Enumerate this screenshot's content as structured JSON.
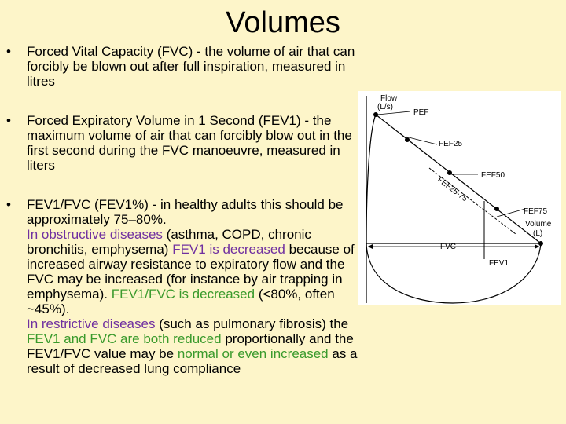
{
  "slide": {
    "title": "Volumes",
    "bullet_marker": "•",
    "bullets": [
      {
        "segments": [
          {
            "text": "Forced Vital Capacity (FVC) - the volume of air that can forcibly be blown out after full inspiration, measured in litres",
            "color": "default"
          }
        ]
      },
      {
        "segments": [
          {
            "text": "Forced Expiratory Volume in 1 Second (FEV1) - the maximum volume of air that can forcibly blow out in the first second during the FVC manoeuvre, measured in liters",
            "color": "default"
          }
        ]
      },
      {
        "segments": [
          {
            "text": "FEV1/FVC (FEV1%) - in healthy adults this should be approximately 75–80%.",
            "color": "default"
          },
          {
            "text": "In obstructive diseases",
            "color": "purple"
          },
          {
            "text": "(asthma, COPD, chronic bronchitis, emphysema)",
            "color": "default"
          },
          {
            "text": "FEV1 is decreased",
            "color": "purple"
          },
          {
            "text": "because of increased airway resistance to expiratory flow and the FVC may be increased (for instance by air trapping in emphysema).",
            "color": "default"
          },
          {
            "text": "FEV1/FVC is decreased",
            "color": "green"
          },
          {
            "text": "(<80%, often ~45%).",
            "color": "default"
          },
          {
            "text": "In restrictive diseases",
            "color": "purple"
          },
          {
            "text": "(such as pulmonary fibrosis) the",
            "color": "default"
          },
          {
            "text": "FEV1 and FVC are both reduced",
            "color": "green"
          },
          {
            "text": "proportionally and the FEV1/FVC value may be",
            "color": "default"
          },
          {
            "text": "normal or even increased",
            "color": "green"
          },
          {
            "text": "as a result of decreased lung compliance",
            "color": "default"
          }
        ]
      }
    ]
  },
  "diagram": {
    "y_axis_label_line1": "Flow",
    "y_axis_label_line2": "(L/s)",
    "x_axis_label_line1": "Volume",
    "x_axis_label_line2": "(L)",
    "labels": {
      "pef": "PEF",
      "fef25": "FEF25",
      "fef50": "FEF50",
      "fef2575": "FEF25-75",
      "fef75": "FEF75",
      "fvc": "FVC",
      "fev1": "FEV1"
    }
  }
}
